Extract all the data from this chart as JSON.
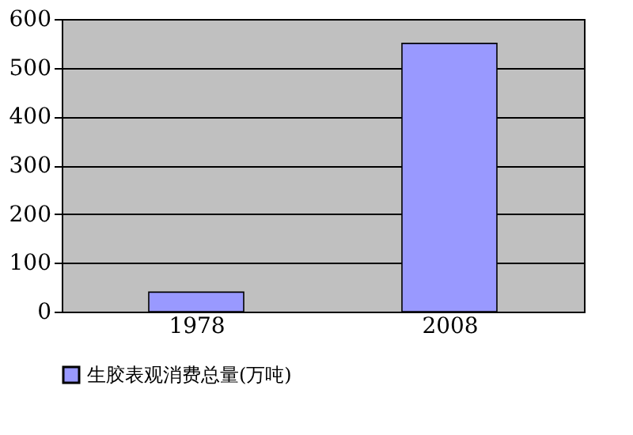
{
  "chart_data": {
    "type": "bar",
    "categories": [
      "1978",
      "2008"
    ],
    "series": [
      {
        "name": "生胶表观消费总量(万吨)",
        "color": "#9999ff",
        "values": [
          40,
          550
        ]
      }
    ],
    "ylim": [
      0,
      600
    ],
    "yticks": [
      0,
      100,
      200,
      300,
      400,
      500,
      600
    ],
    "grid": "y",
    "legend": "bottom"
  }
}
